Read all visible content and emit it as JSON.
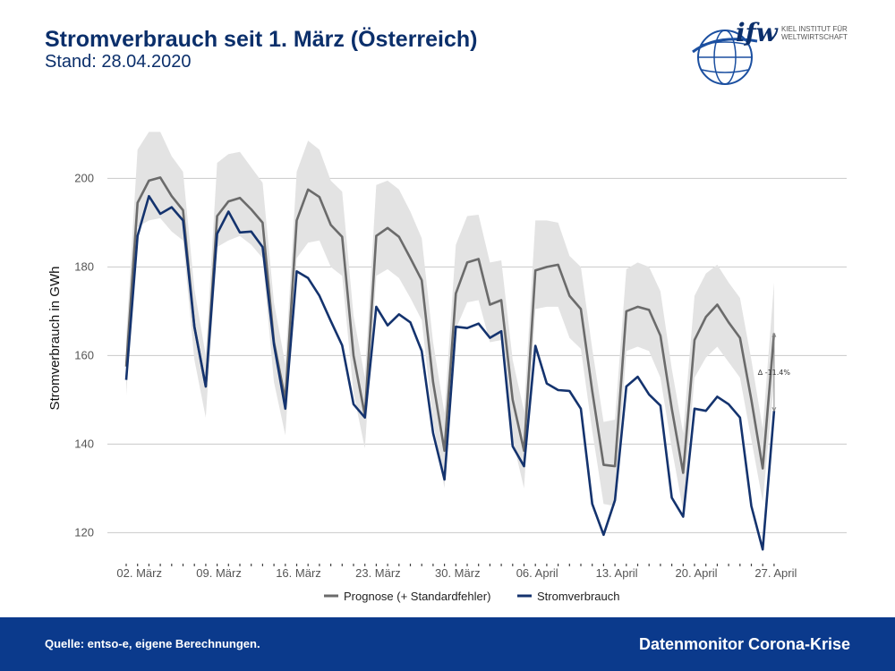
{
  "header": {
    "title": "Stromverbrauch seit 1. März (Österreich)",
    "subtitle": "Stand: 28.04.2020"
  },
  "logo": {
    "wordmark": "ifw",
    "line1": "KIEL INSTITUT FÜR",
    "line2": "WELTWIRTSCHAFT"
  },
  "footer": {
    "source": "Quelle: entso-e, eigene Berechnungen.",
    "brand": "Datenmonitor Corona-Krise"
  },
  "colors": {
    "prognose": "#6b6b6b",
    "stromverbrauch": "#14336e",
    "band": "#e3e3e3",
    "footer_bg": "#0b3a8c"
  },
  "chart_data": {
    "type": "line",
    "title": "Stromverbrauch seit 1. März (Österreich)",
    "subtitle": "Stand: 28.04.2020",
    "ylabel": "Stromverbrauch in GWh",
    "xlabel": "",
    "ylim": [
      113,
      212
    ],
    "yticks": [
      120,
      140,
      160,
      180,
      200
    ],
    "grid": "horizontal",
    "legend_position": "bottom",
    "x": [
      "01.03",
      "02.03",
      "03.03",
      "04.03",
      "05.03",
      "06.03",
      "07.03",
      "08.03",
      "09.03",
      "10.03",
      "11.03",
      "12.03",
      "13.03",
      "14.03",
      "15.03",
      "16.03",
      "17.03",
      "18.03",
      "19.03",
      "20.03",
      "21.03",
      "22.03",
      "23.03",
      "24.03",
      "25.03",
      "26.03",
      "27.03",
      "28.03",
      "29.03",
      "30.03",
      "31.03",
      "01.04",
      "02.04",
      "03.04",
      "04.04",
      "05.04",
      "06.04",
      "07.04",
      "08.04",
      "09.04",
      "10.04",
      "11.04",
      "12.04",
      "13.04",
      "14.04",
      "15.04",
      "16.04",
      "17.04",
      "18.04",
      "19.04",
      "20.04",
      "21.04",
      "22.04",
      "23.04",
      "24.04",
      "25.04",
      "26.04",
      "27.04"
    ],
    "xtick_labels": [
      {
        "label": "02. März",
        "index": 1
      },
      {
        "label": "09. März",
        "index": 8
      },
      {
        "label": "16. März",
        "index": 15
      },
      {
        "label": "23. März",
        "index": 22
      },
      {
        "label": "30. März",
        "index": 29
      },
      {
        "label": "06. April",
        "index": 36
      },
      {
        "label": "13. April",
        "index": 43
      },
      {
        "label": "20. April",
        "index": 50
      },
      {
        "label": "27. April",
        "index": 57
      }
    ],
    "series": [
      {
        "name": "Prognose (+ Standardfehler)",
        "values": [
          157.5,
          194.5,
          199.5,
          200.2,
          196.0,
          192.8,
          166.5,
          153.0,
          191.5,
          194.8,
          195.6,
          193.0,
          190.0,
          163.0,
          150.0,
          190.5,
          197.5,
          195.8,
          189.5,
          186.8,
          160.0,
          146.5,
          187.0,
          188.8,
          186.8,
          182.0,
          177.0,
          154.0,
          138.5,
          174.0,
          181.0,
          181.8,
          171.5,
          172.5,
          150.0,
          138.5,
          179.2,
          180.0,
          180.5,
          173.5,
          170.5,
          152.0,
          135.3,
          135.0,
          170.0,
          171.0,
          170.3,
          164.5,
          148.0,
          133.5,
          163.5,
          168.7,
          171.5,
          167.5,
          164.0,
          150.0,
          134.5,
          165.0
        ],
        "lower": [
          151.0,
          189.0,
          190.5,
          191.0,
          188.0,
          186.0,
          159.0,
          146.0,
          184.5,
          186.0,
          187.0,
          185.0,
          182.0,
          154.0,
          142.0,
          182.0,
          185.5,
          186.0,
          180.0,
          178.0,
          151.5,
          139.0,
          178.0,
          179.5,
          177.5,
          173.0,
          168.0,
          145.0,
          130.0,
          166.0,
          172.0,
          172.5,
          163.0,
          163.5,
          141.0,
          130.0,
          170.5,
          171.0,
          171.0,
          164.0,
          161.5,
          143.0,
          126.5,
          126.0,
          161.0,
          162.0,
          161.0,
          155.0,
          139.0,
          125.0,
          155.0,
          159.5,
          162.0,
          158.5,
          155.0,
          141.0,
          127.0,
          154.0
        ],
        "upper": [
          164.0,
          206.5,
          210.5,
          210.5,
          205.0,
          201.5,
          175.0,
          160.0,
          203.5,
          205.5,
          206.0,
          202.5,
          199.0,
          172.0,
          158.0,
          201.5,
          208.5,
          206.5,
          199.5,
          197.0,
          169.0,
          155.0,
          198.5,
          199.5,
          197.5,
          192.5,
          186.5,
          163.0,
          147.0,
          185.0,
          191.5,
          191.8,
          181.0,
          181.5,
          159.0,
          147.5,
          190.5,
          190.5,
          190.0,
          182.5,
          180.0,
          161.5,
          145.0,
          145.5,
          179.5,
          181.0,
          180.0,
          174.5,
          157.0,
          142.5,
          173.5,
          178.5,
          180.5,
          176.5,
          173.0,
          159.0,
          143.5,
          176.5
        ]
      },
      {
        "name": "Stromverbrauch",
        "values": [
          154.5,
          187.0,
          196.0,
          192.0,
          193.5,
          190.5,
          166.5,
          153.0,
          187.5,
          192.5,
          187.8,
          188.0,
          184.5,
          162.5,
          148.0,
          179.0,
          177.5,
          173.5,
          167.8,
          162.3,
          149.0,
          146.0,
          171.0,
          166.8,
          169.3,
          167.5,
          161.0,
          142.5,
          132.0,
          166.5,
          166.2,
          167.2,
          164.0,
          165.5,
          139.5,
          135.0,
          162.2,
          153.7,
          152.2,
          152.0,
          148.0,
          126.5,
          119.5,
          127.3,
          153.0,
          155.2,
          151.2,
          148.7,
          127.9,
          123.6,
          148.0,
          147.5,
          150.7,
          149.0,
          146.0,
          126.0,
          116.2,
          147.5
        ]
      }
    ],
    "annotation": "∆ -11.4%"
  }
}
